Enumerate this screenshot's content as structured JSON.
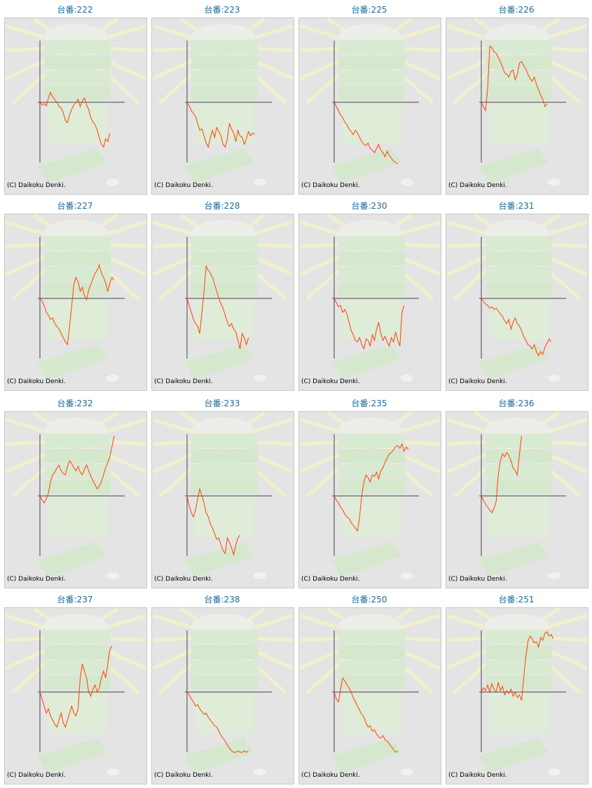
{
  "chart_data": [
    {
      "type": "line",
      "title": "台番:222",
      "note": "(C) Daikoku Denki.",
      "color": "#ff4000",
      "xlim": [
        0,
        40
      ],
      "ylim": [
        -88,
        88
      ],
      "values": [
        0,
        -4,
        -2,
        -5,
        6,
        14,
        8,
        4,
        0,
        -6,
        -8,
        -15,
        -26,
        -29,
        -18,
        -10,
        -4,
        0,
        4,
        -6,
        2,
        6,
        -4,
        -10,
        -22,
        -28,
        -32,
        -40,
        -50,
        -60,
        -64,
        -52,
        -56,
        -44
      ]
    },
    {
      "type": "line",
      "title": "台番:223",
      "note": "(C) Daikoku Denki.",
      "color": "#ff4000",
      "xlim": [
        0,
        40
      ],
      "ylim": [
        -88,
        88
      ],
      "values": [
        0,
        -5,
        -12,
        -16,
        -20,
        -30,
        -40,
        -38,
        -48,
        -58,
        -64,
        -50,
        -40,
        -50,
        -36,
        -42,
        -48,
        -60,
        -64,
        -52,
        -30,
        -38,
        -44,
        -56,
        -40,
        -48,
        -50,
        -60,
        -52,
        -42,
        -48,
        -44,
        -46
      ]
    },
    {
      "type": "line",
      "title": "台番:225",
      "note": "(C) Daikoku Denki.",
      "color": "#ff4000",
      "xlim": [
        0,
        40
      ],
      "ylim": [
        -88,
        88
      ],
      "values": [
        0,
        -6,
        -12,
        -18,
        -22,
        -28,
        -32,
        -38,
        -42,
        -46,
        -40,
        -44,
        -50,
        -56,
        -60,
        -62,
        -58,
        -66,
        -68,
        -72,
        -66,
        -60,
        -68,
        -72,
        -78,
        -70,
        -76,
        -80,
        -84,
        -86,
        -88
      ]
    },
    {
      "type": "line",
      "title": "台番:226",
      "note": "(C) Daikoku Denki.",
      "color": "#ff4000",
      "xlim": [
        0,
        40
      ],
      "ylim": [
        -88,
        88
      ],
      "values": [
        0,
        -6,
        -12,
        20,
        80,
        78,
        72,
        70,
        64,
        58,
        50,
        42,
        40,
        36,
        44,
        46,
        32,
        40,
        56,
        58,
        52,
        48,
        40,
        34,
        30,
        36,
        26,
        18,
        10,
        4,
        -6,
        -2
      ]
    },
    {
      "type": "line",
      "title": "台番:227",
      "note": "(C) Daikoku Denki.",
      "color": "#ff4000",
      "xlim": [
        0,
        40
      ],
      "ylim": [
        -88,
        88
      ],
      "values": [
        0,
        -4,
        -10,
        -20,
        -24,
        -30,
        -28,
        -36,
        -40,
        -44,
        -50,
        -56,
        -62,
        -66,
        -40,
        -10,
        20,
        30,
        24,
        10,
        16,
        4,
        -2,
        12,
        20,
        28,
        36,
        40,
        48,
        36,
        30,
        22,
        10,
        22,
        30,
        26
      ]
    },
    {
      "type": "line",
      "title": "台番:228",
      "note": "(C) Daikoku Denki.",
      "color": "#ff4000",
      "xlim": [
        0,
        40
      ],
      "ylim": [
        -88,
        88
      ],
      "values": [
        0,
        -10,
        -20,
        -30,
        -36,
        -40,
        -50,
        -20,
        10,
        46,
        40,
        36,
        30,
        20,
        10,
        0,
        -8,
        -14,
        -24,
        -34,
        -40,
        -36,
        -44,
        -48,
        -60,
        -72,
        -50,
        -56,
        -66,
        -56
      ]
    },
    {
      "type": "line",
      "title": "台番:230",
      "note": "(C) Daikoku Denki.",
      "color": "#ff4000",
      "xlim": [
        0,
        40
      ],
      "ylim": [
        -88,
        88
      ],
      "values": [
        0,
        -6,
        -12,
        -10,
        -20,
        -16,
        -22,
        -34,
        -46,
        -52,
        -60,
        -62,
        -56,
        -66,
        -72,
        -58,
        -60,
        -68,
        -52,
        -60,
        -44,
        -34,
        -50,
        -60,
        -54,
        -62,
        -68,
        -56,
        -62,
        -48,
        -60,
        -68,
        -20,
        -10
      ]
    },
    {
      "type": "line",
      "title": "台番:231",
      "note": "(C) Daikoku Denki.",
      "color": "#ff4000",
      "xlim": [
        0,
        40
      ],
      "ylim": [
        -88,
        88
      ],
      "values": [
        0,
        -4,
        -8,
        -10,
        -14,
        -12,
        -16,
        -14,
        -18,
        -22,
        -26,
        -32,
        -36,
        -30,
        -44,
        -34,
        -28,
        -36,
        -40,
        -46,
        -54,
        -60,
        -66,
        -68,
        -72,
        -66,
        -76,
        -82,
        -76,
        -80,
        -70,
        -64,
        -58,
        -62
      ]
    },
    {
      "type": "line",
      "title": "台番:232",
      "note": "(C) Daikoku Denki.",
      "color": "#ff4000",
      "xlim": [
        0,
        40
      ],
      "ylim": [
        -88,
        88
      ],
      "values": [
        0,
        -6,
        -10,
        -4,
        4,
        20,
        30,
        34,
        40,
        44,
        36,
        32,
        30,
        42,
        50,
        46,
        40,
        36,
        42,
        34,
        30,
        38,
        44,
        36,
        28,
        22,
        16,
        10,
        14,
        20,
        30,
        40,
        48,
        56,
        70,
        86
      ]
    },
    {
      "type": "line",
      "title": "台番:233",
      "note": "(C) Daikoku Denki.",
      "color": "#ff4000",
      "xlim": [
        0,
        40
      ],
      "ylim": [
        -88,
        88
      ],
      "values": [
        0,
        -14,
        -24,
        -30,
        -20,
        -4,
        10,
        0,
        -10,
        -24,
        -30,
        -40,
        -46,
        -54,
        -62,
        -60,
        -70,
        -78,
        -82,
        -60,
        -66,
        -74,
        -84,
        -70,
        -60,
        -56
      ]
    },
    {
      "type": "line",
      "title": "台番:235",
      "note": "(C) Daikoku Denki.",
      "color": "#ff4000",
      "xlim": [
        0,
        40
      ],
      "ylim": [
        -88,
        88
      ],
      "values": [
        0,
        -6,
        -10,
        -16,
        -20,
        -26,
        -30,
        -32,
        -38,
        -42,
        -46,
        -50,
        -30,
        0,
        20,
        30,
        26,
        20,
        30,
        28,
        34,
        24,
        36,
        40,
        48,
        54,
        60,
        62,
        66,
        70,
        72,
        68,
        74,
        64,
        70,
        66
      ]
    },
    {
      "type": "line",
      "title": "台番:236",
      "note": "(C) Daikoku Denki.",
      "color": "#ff4000",
      "xlim": [
        0,
        40
      ],
      "ylim": [
        -88,
        88
      ],
      "values": [
        0,
        -6,
        -12,
        -16,
        -20,
        -24,
        -18,
        -8,
        30,
        50,
        60,
        56,
        62,
        58,
        50,
        40,
        36,
        30,
        60,
        86
      ]
    },
    {
      "type": "line",
      "title": "台番:237",
      "note": "(C) Daikoku Denki.",
      "color": "#ff4000",
      "xlim": [
        0,
        40
      ],
      "ylim": [
        -88,
        88
      ],
      "values": [
        0,
        -10,
        -20,
        -30,
        -24,
        -34,
        -40,
        -46,
        -50,
        -40,
        -30,
        -44,
        -50,
        -40,
        -30,
        -20,
        -30,
        -34,
        -24,
        20,
        40,
        30,
        20,
        0,
        -6,
        4,
        10,
        0,
        6,
        20,
        30,
        20,
        40,
        60,
        66
      ]
    },
    {
      "type": "line",
      "title": "台番:238",
      "note": "(C) Daikoku Denki.",
      "color": "#ff4000",
      "xlim": [
        0,
        40
      ],
      "ylim": [
        -88,
        88
      ],
      "values": [
        0,
        -4,
        -10,
        -14,
        -20,
        -18,
        -24,
        -28,
        -32,
        -30,
        -36,
        -40,
        -44,
        -48,
        -50,
        -56,
        -62,
        -66,
        -70,
        -76,
        -80,
        -84,
        -86,
        -86,
        -84,
        -86,
        -86,
        -84,
        -86,
        -84
      ]
    },
    {
      "type": "line",
      "title": "台番:250",
      "note": "(C) Daikoku Denki.",
      "color": "#ff4000",
      "xlim": [
        0,
        40
      ],
      "ylim": [
        -88,
        88
      ],
      "values": [
        0,
        -10,
        -14,
        4,
        20,
        16,
        10,
        6,
        0,
        -8,
        -14,
        -20,
        -26,
        -32,
        -36,
        -44,
        -50,
        -48,
        -56,
        -54,
        -60,
        -64,
        -66,
        -62,
        -68,
        -70,
        -74,
        -78,
        -82,
        -86,
        -84
      ]
    },
    {
      "type": "line",
      "title": "台番:251",
      "note": "(C) Daikoku Denki.",
      "color": "#ff4000",
      "xlim": [
        0,
        40
      ],
      "ylim": [
        -88,
        88
      ],
      "values": [
        0,
        6,
        2,
        10,
        0,
        12,
        4,
        0,
        14,
        2,
        8,
        -4,
        2,
        -2,
        4,
        -6,
        0,
        -8,
        -4,
        -12,
        20,
        50,
        72,
        80,
        76,
        70,
        72,
        64,
        78,
        74,
        84,
        86,
        80,
        82,
        76
      ]
    }
  ]
}
